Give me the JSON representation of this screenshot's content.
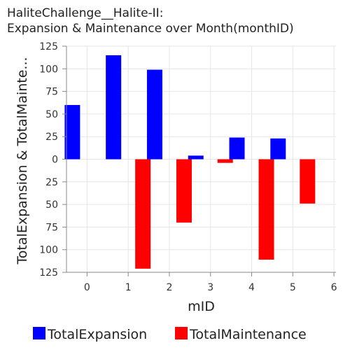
{
  "chart_data": {
    "type": "bar",
    "title_lines": [
      "HaliteChallenge__Halite-II:",
      "Expansion & Maintenance over Month(monthID)"
    ],
    "xlabel": "mID",
    "ylabel": "TotalExpansion & TotalMainte...",
    "categories": [
      "0",
      "1",
      "2",
      "3",
      "4",
      "5",
      "6"
    ],
    "y_tick_labels": [
      "125",
      "100",
      "75",
      "50",
      "25",
      "0",
      "25",
      "50",
      "75",
      "100",
      "125"
    ],
    "ylim": [
      -125,
      125
    ],
    "grid": true,
    "legend_position": "bottom",
    "series": [
      {
        "name": "TotalExpansion",
        "color": "#0000ff",
        "values": [
          60,
          115,
          99,
          4,
          24,
          23,
          null
        ]
      },
      {
        "name": "TotalMaintenance",
        "color": "#ff0000",
        "values": [
          null,
          -121,
          -70,
          -4,
          -111,
          -49,
          null
        ]
      }
    ]
  }
}
